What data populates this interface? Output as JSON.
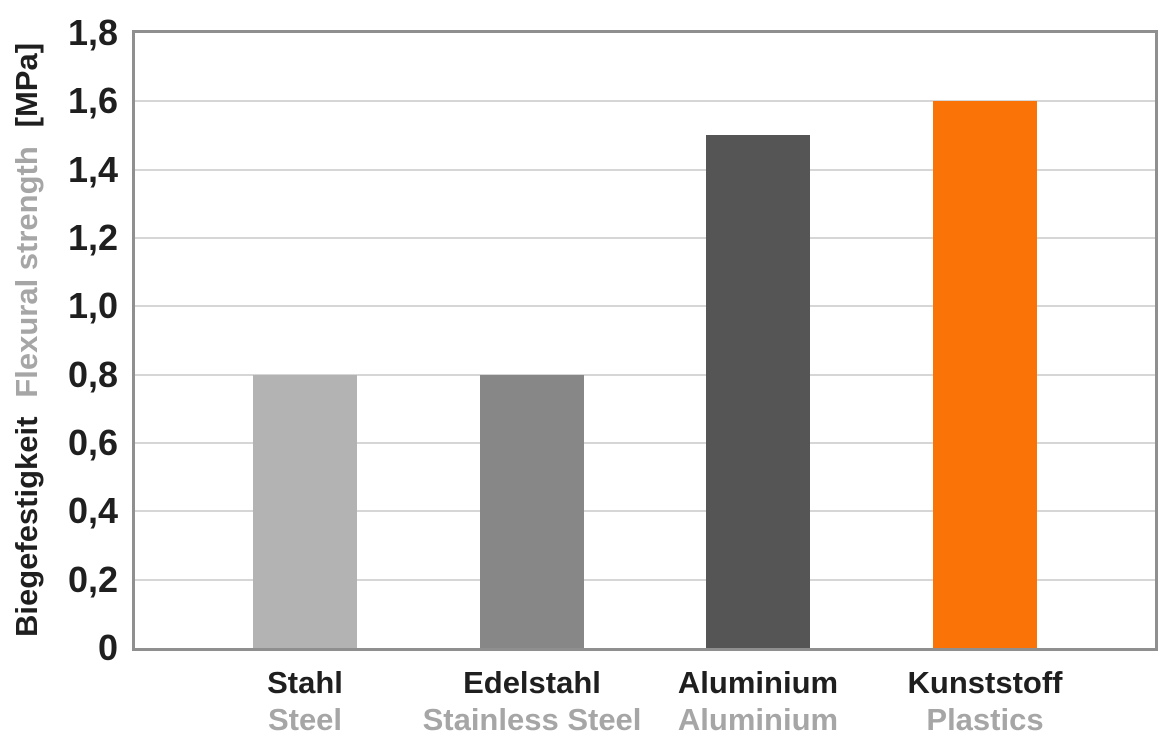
{
  "figure": {
    "background": "#ffffff"
  },
  "chart_data": {
    "type": "bar",
    "title": "",
    "grid": true,
    "legend": false,
    "y_axis": {
      "label_de": "Biegefestigkeit",
      "label_en": "Flexural strength",
      "unit": "[MPa]",
      "min": 0,
      "max": 1.8,
      "tick_step": 0.2,
      "decimal_separator": ",",
      "ticks": [
        {
          "value": 0,
          "label": "0"
        },
        {
          "value": 0.2,
          "label": "0,2"
        },
        {
          "value": 0.4,
          "label": "0,4"
        },
        {
          "value": 0.6,
          "label": "0,6"
        },
        {
          "value": 0.8,
          "label": "0,8"
        },
        {
          "value": 1.0,
          "label": "1,0"
        },
        {
          "value": 1.2,
          "label": "1,2"
        },
        {
          "value": 1.4,
          "label": "1,4"
        },
        {
          "value": 1.6,
          "label": "1,6"
        },
        {
          "value": 1.8,
          "label": "1,8"
        }
      ]
    },
    "categories": [
      "Stahl",
      "Edelstahl",
      "Aluminium",
      "Kunststoff"
    ],
    "bars": [
      {
        "label_de": "Stahl",
        "label_en": "Steel",
        "value": 0.8,
        "color": "#b3b3b3"
      },
      {
        "label_de": "Edelstahl",
        "label_en": "Stainless Steel",
        "value": 0.8,
        "color": "#878787"
      },
      {
        "label_de": "Aluminium",
        "label_en": "Aluminium",
        "value": 1.5,
        "color": "#555555"
      },
      {
        "label_de": "Kunststoff",
        "label_en": "Plastics",
        "value": 1.6,
        "color": "#f97306"
      }
    ],
    "colors": {
      "text_primary": "#1f1f1f",
      "text_secondary": "#a6a6a6",
      "gridline": "#d6d6d6",
      "frame": "#8f8f8f",
      "background": "#ffffff"
    }
  }
}
